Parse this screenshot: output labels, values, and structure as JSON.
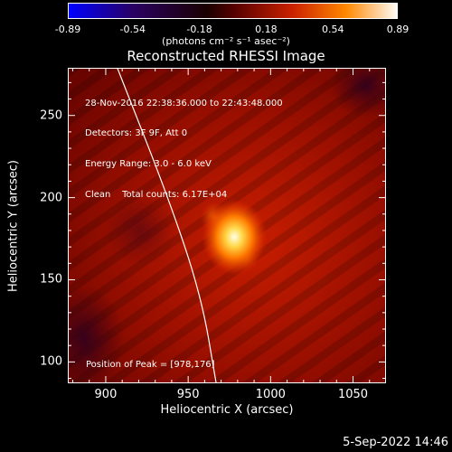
{
  "chart_data": {
    "type": "heatmap",
    "title": "Reconstructed RHESSI Image",
    "xlabel": "Heliocentric X (arcsec)",
    "ylabel": "Heliocentric Y (arcsec)",
    "xlim": [
      877,
      1070
    ],
    "ylim": [
      87,
      279
    ],
    "x_ticks": [
      900,
      950,
      1000,
      1050
    ],
    "y_ticks": [
      100,
      150,
      200,
      250
    ],
    "colorbar": {
      "colormap": "rhessi-temperature (blue-black-red-yellow-white)",
      "range": [
        -0.89,
        0.89
      ],
      "tick_labels": [
        "-0.89",
        "-0.54",
        "-0.18",
        "0.18",
        "0.54",
        "0.89"
      ],
      "units": "(photons cm⁻² s⁻¹ asec⁻²)"
    },
    "annotations": {
      "info_lines": [
        "28-Nov-2016 22:38:36.000 to 22:43:48.000",
        "Detectors: 3F 9F, Att 0",
        "Energy Range: 3.0 - 6.0 keV",
        "Clean    Total counts: 6.17E+04"
      ],
      "peak_text": "Position of Peak = [978,176]"
    },
    "peak_position": [
      978,
      176
    ],
    "peak_value": 0.89,
    "limb": {
      "description": "solar limb arc",
      "points": [
        [
          907,
          279
        ],
        [
          938,
          200
        ],
        [
          958,
          140
        ],
        [
          967,
          87
        ]
      ]
    },
    "grid": false
  },
  "footer": {
    "timestamp": "5-Sep-2022 14:46"
  }
}
